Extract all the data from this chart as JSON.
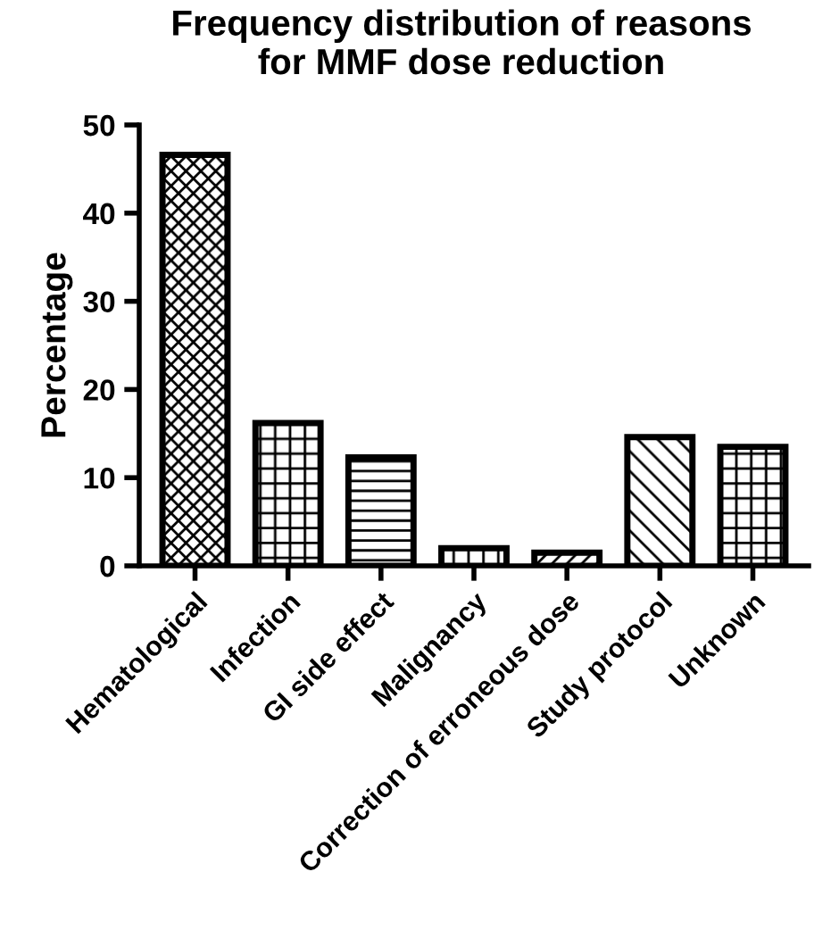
{
  "chart_data": {
    "type": "bar",
    "title": "Frequency distribution of reasons\nfor MMF dose reduction",
    "ylabel": "Percentage",
    "categories": [
      "Hematological",
      "Infection",
      "GI side effect",
      "Malignancy",
      "Correction of erroneous dose",
      "Study protocol",
      "Unknown"
    ],
    "values": [
      46.6,
      16.2,
      12.3,
      2.0,
      1.5,
      14.6,
      13.5
    ],
    "ylim": [
      0,
      50
    ],
    "yticks": [
      0,
      10,
      20,
      30,
      40,
      50
    ],
    "grid": false,
    "legend": false
  }
}
